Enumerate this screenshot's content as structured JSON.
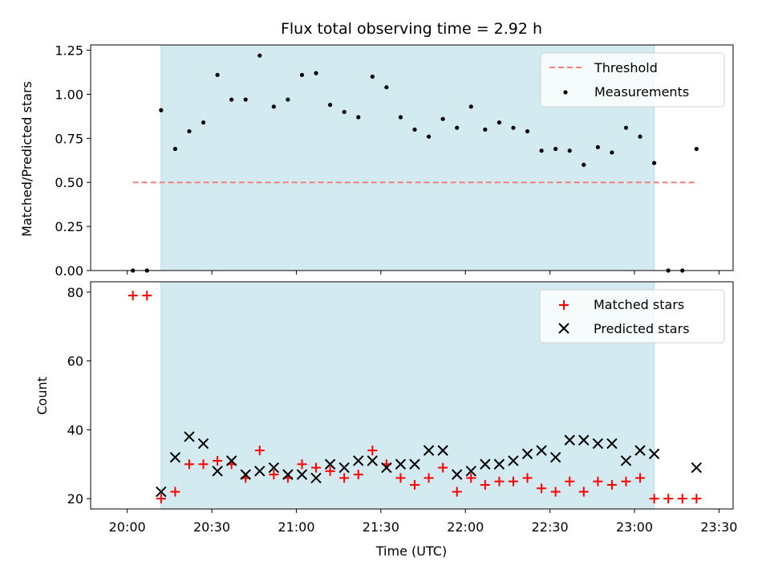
{
  "chart_data": [
    {
      "type": "scatter",
      "title": "Flux total observing time = 2.92 h",
      "xlabel": "",
      "ylabel": "Matched/Predicted stars",
      "xlim": [
        "20:00",
        "23:30"
      ],
      "ylim": [
        0,
        1.25
      ],
      "yticks": [
        "0.00",
        "0.25",
        "0.50",
        "0.75",
        "1.00",
        "1.25"
      ],
      "shaded_interval": [
        "20:12",
        "23:07"
      ],
      "grid": false,
      "legend": "upper-right",
      "series": [
        {
          "name": "Threshold",
          "style": "dashed-line",
          "color": "#f08080",
          "x": [
            "20:02",
            "23:22"
          ],
          "values": [
            0.5,
            0.5
          ]
        },
        {
          "name": "Measurements",
          "style": "dot",
          "color": "#000000",
          "x": [
            "20:02",
            "20:07",
            "20:12",
            "20:17",
            "20:22",
            "20:27",
            "20:32",
            "20:37",
            "20:42",
            "20:47",
            "20:52",
            "20:57",
            "21:02",
            "21:07",
            "21:12",
            "21:17",
            "21:22",
            "21:27",
            "21:32",
            "21:37",
            "21:42",
            "21:47",
            "21:52",
            "21:57",
            "22:02",
            "22:07",
            "22:12",
            "22:17",
            "22:22",
            "22:27",
            "22:32",
            "22:37",
            "22:42",
            "22:47",
            "22:52",
            "22:57",
            "23:02",
            "23:07",
            "23:12",
            "23:17",
            "23:22"
          ],
          "values": [
            0.0,
            0.0,
            0.91,
            0.69,
            0.79,
            0.84,
            1.11,
            0.97,
            0.97,
            1.22,
            0.93,
            0.97,
            1.11,
            1.12,
            0.94,
            0.9,
            0.87,
            1.1,
            1.04,
            0.87,
            0.8,
            0.76,
            0.86,
            0.81,
            0.93,
            0.8,
            0.84,
            0.81,
            0.79,
            0.68,
            0.69,
            0.68,
            0.6,
            0.7,
            0.67,
            0.81,
            0.76,
            0.61,
            0.0,
            0.0,
            0.69
          ]
        }
      ]
    },
    {
      "type": "scatter",
      "title": "",
      "xlabel": "Time (UTC)",
      "ylabel": "Count",
      "xlim": [
        "20:00",
        "23:30"
      ],
      "xticks": [
        "20:00",
        "20:30",
        "21:00",
        "21:30",
        "22:00",
        "22:30",
        "23:00",
        "23:30"
      ],
      "ylim": [
        17,
        83
      ],
      "yticks": [
        "20",
        "40",
        "60",
        "80"
      ],
      "shaded_interval": [
        "20:12",
        "23:07"
      ],
      "grid": false,
      "legend": "upper-right",
      "series": [
        {
          "name": "Matched stars",
          "style": "plus",
          "color": "#ff0000",
          "x": [
            "20:02",
            "20:07",
            "20:12",
            "20:17",
            "20:22",
            "20:27",
            "20:32",
            "20:37",
            "20:42",
            "20:47",
            "20:52",
            "20:57",
            "21:02",
            "21:07",
            "21:12",
            "21:17",
            "21:22",
            "21:27",
            "21:32",
            "21:37",
            "21:42",
            "21:47",
            "21:52",
            "21:57",
            "22:02",
            "22:07",
            "22:12",
            "22:17",
            "22:22",
            "22:27",
            "22:32",
            "22:37",
            "22:42",
            "22:47",
            "22:52",
            "22:57",
            "23:02",
            "23:07",
            "23:12",
            "23:17",
            "23:22"
          ],
          "values": [
            79,
            79,
            20,
            22,
            30,
            30,
            31,
            30,
            26,
            34,
            27,
            26,
            30,
            29,
            28,
            26,
            27,
            34,
            30,
            26,
            24,
            26,
            29,
            22,
            26,
            24,
            25,
            25,
            26,
            23,
            22,
            25,
            22,
            25,
            24,
            25,
            26,
            20,
            20,
            20,
            20
          ]
        },
        {
          "name": "Predicted stars",
          "style": "cross",
          "color": "#000000",
          "x": [
            "20:12",
            "20:17",
            "20:22",
            "20:27",
            "20:32",
            "20:37",
            "20:42",
            "20:47",
            "20:52",
            "20:57",
            "21:02",
            "21:07",
            "21:12",
            "21:17",
            "21:22",
            "21:27",
            "21:32",
            "21:37",
            "21:42",
            "21:47",
            "21:52",
            "21:57",
            "22:02",
            "22:07",
            "22:12",
            "22:17",
            "22:22",
            "22:27",
            "22:32",
            "22:37",
            "22:42",
            "22:47",
            "22:52",
            "22:57",
            "23:02",
            "23:07",
            "23:22"
          ],
          "values": [
            22,
            32,
            38,
            36,
            28,
            31,
            27,
            28,
            29,
            27,
            27,
            26,
            30,
            29,
            31,
            31,
            29,
            30,
            30,
            34,
            34,
            27,
            28,
            30,
            30,
            31,
            33,
            34,
            32,
            37,
            37,
            36,
            36,
            31,
            34,
            33,
            29
          ]
        }
      ]
    }
  ]
}
